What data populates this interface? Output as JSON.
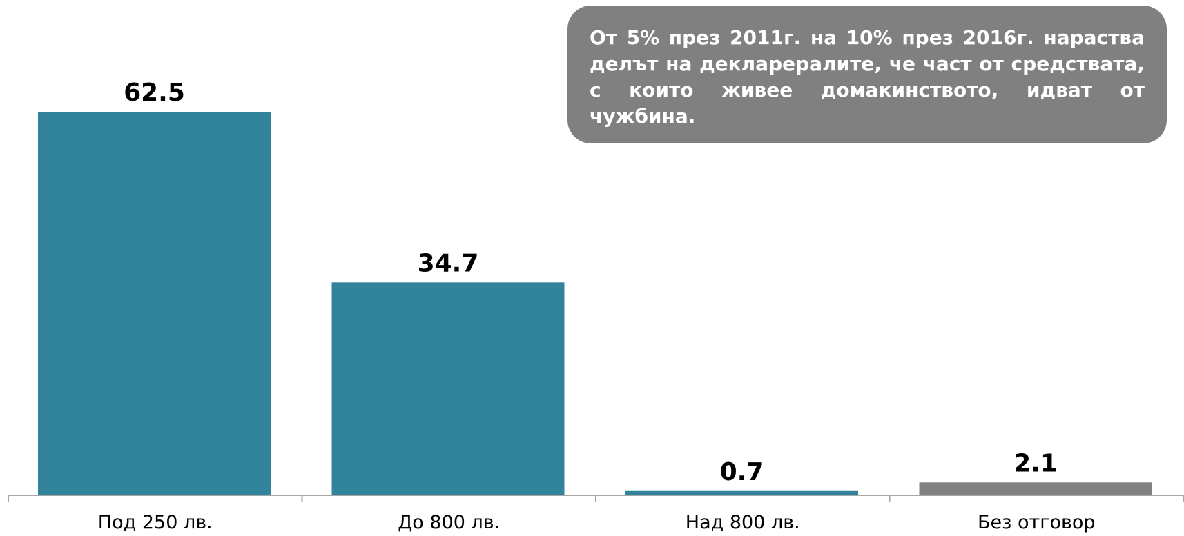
{
  "callout": {
    "text": "От 5% през 2011г. на 10% през 2016г. нараства делът на декларералите, че част от средствата, с които живее домакинството, идват от чужбина."
  },
  "colors": {
    "primary_bar": "#31849b",
    "secondary_bar": "#808080",
    "axis": "#a6a6a6",
    "callout_bg": "#808080",
    "label_text": "#000000"
  },
  "chart_data": {
    "type": "bar",
    "categories": [
      "Под 250 лв.",
      "До 800 лв.",
      "Над 800 лв.",
      "Без отговор"
    ],
    "values": [
      62.5,
      34.7,
      0.7,
      2.1
    ],
    "value_labels": [
      "62.5",
      "34.7",
      "0.7",
      "2.1"
    ],
    "bar_colors": [
      "#31849b",
      "#31849b",
      "#31849b",
      "#808080"
    ],
    "ylim": [
      0,
      62.5
    ],
    "grid": false,
    "legend": "none"
  }
}
